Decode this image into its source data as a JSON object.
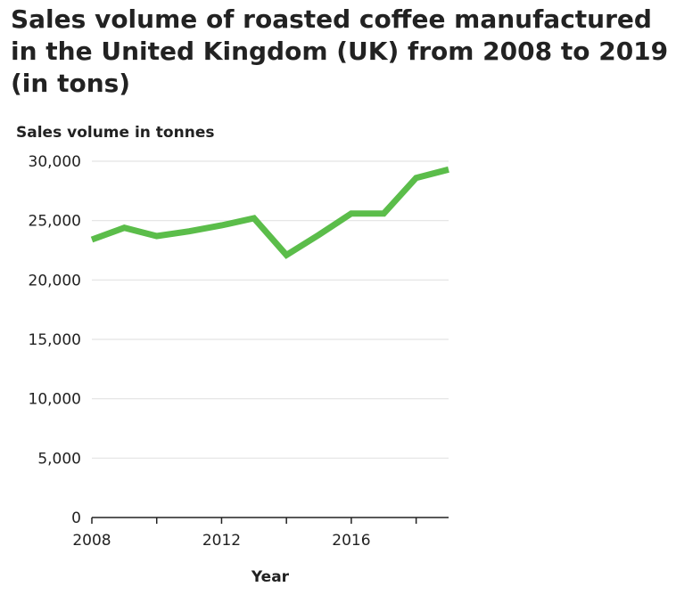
{
  "chart_data": {
    "type": "line",
    "title": "Sales volume of roasted coffee manufactured in the United Kingdom (UK) from 2008 to 2019 (in tons)",
    "xlabel": "Year",
    "ylabel": "Sales volume in tonnes",
    "x": [
      2008,
      2009,
      2010,
      2011,
      2012,
      2013,
      2014,
      2015,
      2016,
      2017,
      2018,
      2019
    ],
    "series": [
      {
        "values": [
          23400,
          24400,
          23700,
          24100,
          24600,
          25200,
          22100,
          23800,
          25600,
          25600,
          28600,
          29300
        ]
      }
    ],
    "ylim": [
      0,
      30000
    ],
    "xlim": [
      2008,
      2019
    ],
    "y_ticks": [
      0,
      5000,
      10000,
      15000,
      20000,
      25000,
      30000
    ],
    "y_tick_labels": [
      "0",
      "5,000",
      "10,000",
      "15,000",
      "20,000",
      "25,000",
      "30,000"
    ],
    "x_ticks": [
      2008,
      2010,
      2012,
      2014,
      2016,
      2018
    ],
    "x_tick_labels": [
      "2008",
      "",
      "2012",
      "",
      "2016",
      ""
    ],
    "grid": "horizontal",
    "line_color": "#5bbd4a",
    "grid_color": "#e3e3e3",
    "axis_color": "#222222"
  }
}
